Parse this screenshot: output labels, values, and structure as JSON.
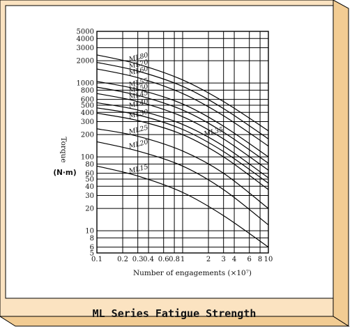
{
  "caption": "ML Series Fatigue Strength",
  "colors": {
    "panel": "#ffffff",
    "frame_face": "#fbe3c1",
    "frame_shade": "#f2cc93",
    "ink": "#111111",
    "border": "#000000"
  },
  "chart_data": {
    "type": "line",
    "title": "",
    "xlabel": "Number of engagements (×10⁷)",
    "ylabel": "Torque",
    "yunit": "(N·m)",
    "xscale": "log",
    "yscale": "log",
    "xlim": [
      0.1,
      10
    ],
    "ylim": [
      5,
      5000
    ],
    "grid": true,
    "legend": "none",
    "x_ticks": [
      "0.1",
      "0.2",
      "0.3",
      "0.4",
      "0.6",
      "0.8",
      "1",
      "2",
      "3",
      "4",
      "6",
      "8",
      "10"
    ],
    "y_ticks": [
      "5",
      "6",
      "8",
      "10",
      "20",
      "30",
      "40",
      "50",
      "60",
      "80",
      "100",
      "200",
      "300",
      "400",
      "500",
      "600",
      "800",
      "1000",
      "2000",
      "3000",
      "4000",
      "5000"
    ],
    "series": [
      {
        "name": "ML80",
        "x": [
          0.1,
          0.3,
          1,
          3,
          10
        ],
        "y": [
          2400,
          1800,
          1100,
          560,
          225
        ]
      },
      {
        "name": "ML70",
        "x": [
          0.1,
          0.3,
          1,
          3,
          10
        ],
        "y": [
          1900,
          1450,
          900,
          450,
          175
        ]
      },
      {
        "name": "ML60",
        "x": [
          0.1,
          0.3,
          1,
          3,
          10
        ],
        "y": [
          1550,
          1180,
          720,
          360,
          140
        ]
      },
      {
        "name": "ML55",
        "x": [
          0.1,
          0.3,
          1,
          3,
          10
        ],
        "y": [
          1050,
          820,
          520,
          260,
          100
        ]
      },
      {
        "name": "ML50",
        "x": [
          0.1,
          0.3,
          1,
          3,
          10
        ],
        "y": [
          880,
          680,
          430,
          215,
          82
        ]
      },
      {
        "name": "ML45",
        "x": [
          0.1,
          0.3,
          1,
          3,
          10
        ],
        "y": [
          720,
          560,
          350,
          175,
          66
        ]
      },
      {
        "name": "ML40",
        "x": [
          0.1,
          0.3,
          1,
          3,
          10
        ],
        "y": [
          540,
          430,
          275,
          140,
          52
        ]
      },
      {
        "name": "ML35",
        "x": [
          0.1,
          0.3,
          1,
          3,
          10
        ],
        "y": [
          460,
          370,
          235,
          118,
          44
        ]
      },
      {
        "name": "ML30",
        "x": [
          0.1,
          0.3,
          1,
          3,
          10
        ],
        "y": [
          390,
          310,
          200,
          100,
          36
        ]
      },
      {
        "name": "ML25",
        "x": [
          0.1,
          0.3,
          1,
          3,
          10
        ],
        "y": [
          240,
          190,
          120,
          60,
          20
        ]
      },
      {
        "name": "ML20",
        "x": [
          0.1,
          0.3,
          1,
          3,
          10
        ],
        "y": [
          160,
          120,
          75,
          36,
          12
        ]
      },
      {
        "name": "ML15",
        "x": [
          0.1,
          0.3,
          1,
          3,
          10
        ],
        "y": [
          75,
          55,
          33,
          16,
          6
        ]
      }
    ]
  }
}
